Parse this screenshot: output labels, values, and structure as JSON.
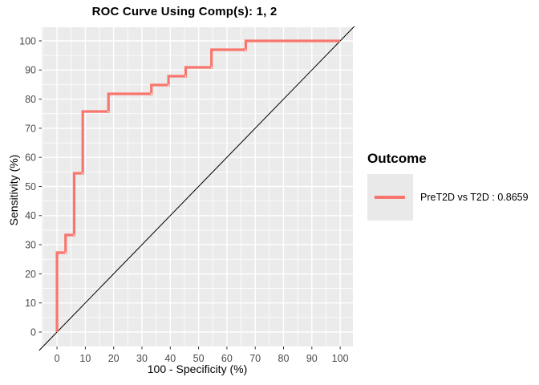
{
  "colors": {
    "panel_bg": "#ebebeb",
    "grid": "#ffffff",
    "curve": "#f8766d",
    "reference_line": "#000000",
    "tick_label": "#4a4a4a",
    "tick_mark": "#333333",
    "legend_key_bg": "#e9e9e9"
  },
  "legend": {
    "title": "Outcome",
    "items": [
      {
        "label": "PreT2D vs T2D : 0.8659",
        "color": "#f8766d"
      }
    ]
  },
  "chart_data": {
    "type": "line",
    "subtype": "roc-step-curve",
    "title": "ROC Curve Using Comp(s): 1, 2",
    "xlabel": "100 - Specificity (%)",
    "ylabel": "Sensitivity (%)",
    "x_ticks": [
      0,
      10,
      20,
      30,
      40,
      50,
      60,
      70,
      80,
      90,
      100
    ],
    "y_ticks": [
      0,
      10,
      20,
      30,
      40,
      50,
      60,
      70,
      80,
      90,
      100
    ],
    "minor_ticks": [
      -5,
      5,
      15,
      25,
      35,
      45,
      55,
      65,
      75,
      85,
      95,
      105
    ],
    "xlim": [
      -5.4,
      104.5
    ],
    "ylim": [
      -4.96,
      104.68
    ],
    "grid": "major and minor white gridlines on gray panel",
    "legend_position": "right",
    "series": [
      {
        "name": "PreT2D vs T2D",
        "auc": 0.8659,
        "color": "#f8766d",
        "step_vertices": [
          [
            0,
            0
          ],
          [
            0,
            27.27
          ],
          [
            3.03,
            27.27
          ],
          [
            3.03,
            33.33
          ],
          [
            6.06,
            33.33
          ],
          [
            6.06,
            54.55
          ],
          [
            9.09,
            54.55
          ],
          [
            9.09,
            75.76
          ],
          [
            18.18,
            75.76
          ],
          [
            18.18,
            81.82
          ],
          [
            33.33,
            81.82
          ],
          [
            33.33,
            84.85
          ],
          [
            39.39,
            84.85
          ],
          [
            39.39,
            87.88
          ],
          [
            45.45,
            87.88
          ],
          [
            45.45,
            90.91
          ],
          [
            54.55,
            90.91
          ],
          [
            54.55,
            96.97
          ],
          [
            66.67,
            96.97
          ],
          [
            66.67,
            100
          ],
          [
            100,
            100
          ]
        ]
      }
    ],
    "reference_line": {
      "type": "diagonal",
      "from": [
        0,
        0
      ],
      "to": [
        100,
        100
      ],
      "color": "#000000"
    }
  }
}
